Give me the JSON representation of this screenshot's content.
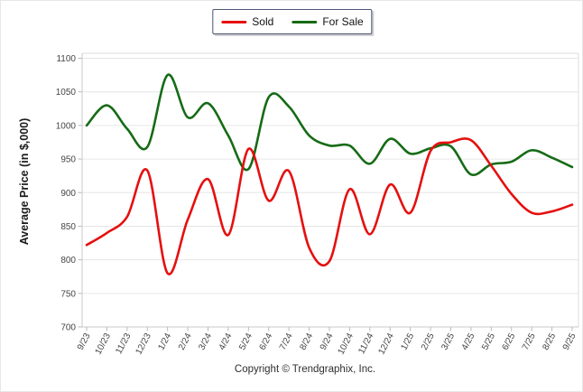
{
  "page": {
    "background": "#ffffff"
  },
  "legend": {
    "items": [
      {
        "label": "Sold",
        "color": "#e60f0f"
      },
      {
        "label": "For Sale",
        "color": "#166b16"
      }
    ]
  },
  "footer": {
    "copyright": "Copyright © Trendgraphix, Inc."
  },
  "chart_data": {
    "type": "line",
    "title": "",
    "xlabel": "",
    "ylabel": "Average Price (in $,000)",
    "ylim": [
      700,
      1100
    ],
    "y_ticks": [
      700,
      750,
      800,
      850,
      900,
      950,
      1000,
      1050,
      1100
    ],
    "grid": "horizontal",
    "legend_position": "top-center",
    "smoothing": "spline",
    "categories": [
      "9/23",
      "10/23",
      "11/23",
      "12/23",
      "1/24",
      "2/24",
      "3/24",
      "4/24",
      "5/24",
      "6/24",
      "7/24",
      "8/24",
      "9/24",
      "10/24",
      "11/24",
      "12/24",
      "1/25",
      "2/25",
      "3/25",
      "4/25",
      "5/25",
      "6/25",
      "7/25",
      "8/25",
      "9/25"
    ],
    "series": [
      {
        "name": "Sold",
        "color": "#e60f0f",
        "values": [
          822,
          840,
          864,
          933,
          780,
          860,
          920,
          837,
          965,
          888,
          932,
          818,
          798,
          905,
          838,
          912,
          870,
          962,
          975,
          978,
          940,
          898,
          870,
          872,
          882
        ]
      },
      {
        "name": "For Sale",
        "color": "#166b16",
        "values": [
          1000,
          1030,
          995,
          968,
          1075,
          1012,
          1033,
          985,
          935,
          1042,
          1028,
          985,
          970,
          970,
          943,
          980,
          958,
          966,
          969,
          927,
          942,
          946,
          963,
          952,
          938
        ]
      }
    ]
  }
}
